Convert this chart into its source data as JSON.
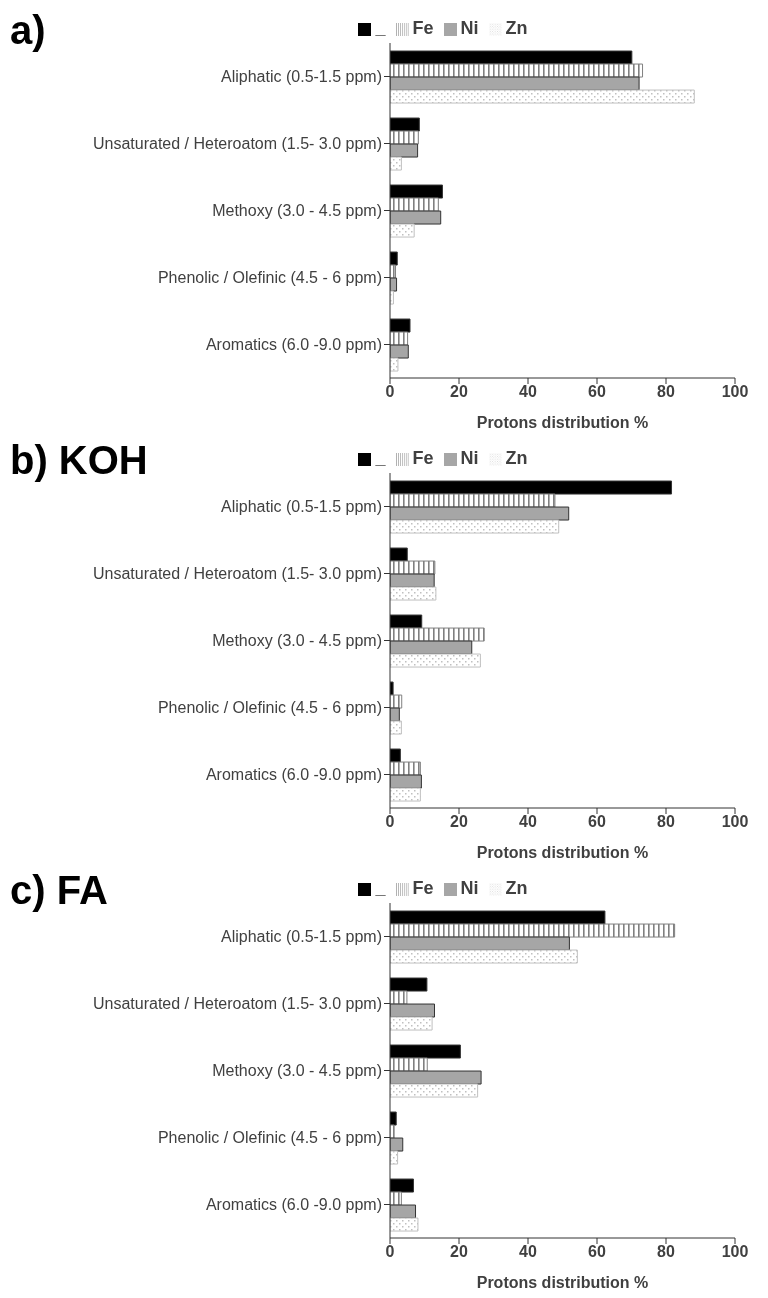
{
  "chart_data": [
    {
      "type": "bar",
      "orientation": "horizontal",
      "title": "a)",
      "xlabel": "Protons distribution %",
      "categories": [
        "Aliphatic (0.5-1.5 ppm)",
        "Unsaturated / Heteroatom (1.5- 3.0 ppm)",
        "Methoxy (3.0 - 4.5 ppm)",
        "Phenolic / Olefinic (4.5 - 6 ppm)",
        "Aromatics (6.0 -9.0 ppm)"
      ],
      "series": [
        {
          "name": "_",
          "color": "#000000",
          "values": [
            70.1,
            8.5,
            15.2,
            2.1,
            5.8
          ]
        },
        {
          "name": "Fe",
          "color": "#808080",
          "values": [
            73.2,
            8.2,
            14.0,
            1.6,
            5.1
          ]
        },
        {
          "name": "Ni",
          "color": "#a6a6a6",
          "values": [
            72.2,
            8.0,
            14.7,
            1.9,
            5.3
          ]
        },
        {
          "name": "Zn",
          "color": "#c0c0c0",
          "values": [
            88.2,
            3.3,
            7.0,
            1.0,
            2.3
          ]
        }
      ],
      "xlim": [
        0,
        100
      ],
      "xticks": [
        0,
        20,
        40,
        60,
        80,
        100
      ],
      "legend": "top",
      "grid": false
    },
    {
      "type": "bar",
      "orientation": "horizontal",
      "title": "b) KOH",
      "xlabel": "Protons distribution %",
      "categories": [
        "Aliphatic (0.5-1.5 ppm)",
        "Unsaturated / Heteroatom (1.5- 3.0 ppm)",
        "Methoxy (3.0 - 4.5 ppm)",
        "Phenolic / Olefinic (4.5 - 6 ppm)",
        "Aromatics (6.0 -9.0 ppm)"
      ],
      "series": [
        {
          "name": "_",
          "color": "#000000",
          "values": [
            81.6,
            5.0,
            9.2,
            0.9,
            3.0
          ]
        },
        {
          "name": "Fe",
          "color": "#808080",
          "values": [
            47.8,
            13.0,
            27.3,
            3.4,
            8.8
          ]
        },
        {
          "name": "Ni",
          "color": "#a6a6a6",
          "values": [
            51.8,
            12.8,
            23.7,
            2.7,
            9.1
          ]
        },
        {
          "name": "Zn",
          "color": "#c0c0c0",
          "values": [
            48.9,
            13.3,
            26.2,
            3.3,
            8.8
          ]
        }
      ],
      "xlim": [
        0,
        100
      ],
      "xticks": [
        0,
        20,
        40,
        60,
        80,
        100
      ],
      "legend": "top",
      "grid": false
    },
    {
      "type": "bar",
      "orientation": "horizontal",
      "title": "c) FA",
      "xlabel": "Protons distribution %",
      "categories": [
        "Aliphatic (0.5-1.5 ppm)",
        "Unsaturated / Heteroatom (1.5- 3.0 ppm)",
        "Methoxy (3.0 - 4.5 ppm)",
        "Phenolic / Olefinic (4.5 - 6 ppm)",
        "Aromatics (6.0 -9.0 ppm)"
      ],
      "series": [
        {
          "name": "_",
          "color": "#000000",
          "values": [
            62.3,
            10.7,
            20.4,
            1.8,
            6.8
          ]
        },
        {
          "name": "Fe",
          "color": "#808080",
          "values": [
            82.5,
            4.9,
            10.8,
            1.2,
            3.3
          ]
        },
        {
          "name": "Ni",
          "color": "#a6a6a6",
          "values": [
            52.0,
            12.9,
            26.4,
            3.7,
            7.4
          ]
        },
        {
          "name": "Zn",
          "color": "#c0c0c0",
          "values": [
            54.3,
            12.2,
            25.4,
            2.2,
            8.1
          ]
        }
      ],
      "xlim": [
        0,
        100
      ],
      "xticks": [
        0,
        20,
        40,
        60,
        80,
        100
      ],
      "legend": "top",
      "grid": false
    }
  ]
}
